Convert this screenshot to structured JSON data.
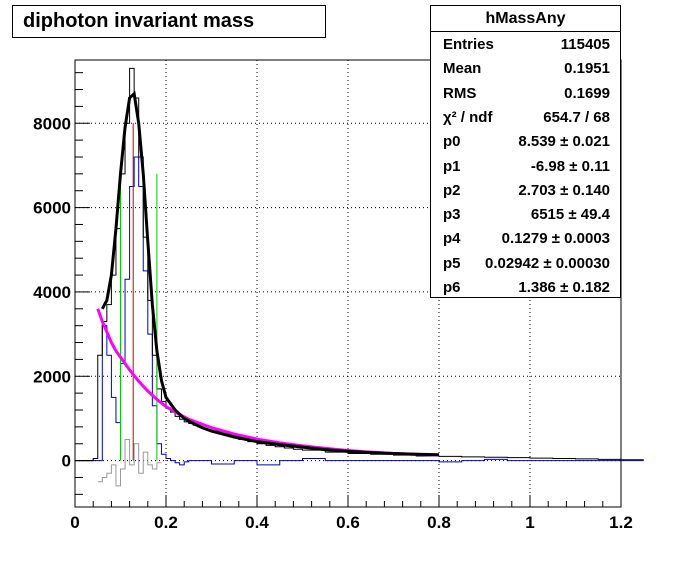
{
  "title": "diphoton invariant mass",
  "stats": {
    "name": "hMassAny",
    "rows": [
      {
        "label": "Entries",
        "value": "115405"
      },
      {
        "label": "Mean",
        "value": "0.1951"
      },
      {
        "label": "RMS",
        "value": "0.1699"
      },
      {
        "label": "χ² / ndf",
        "value": "654.7 / 68"
      },
      {
        "label": "p0",
        "value": "8.539 ± 0.021"
      },
      {
        "label": "p1",
        "value": "-6.98 ± 0.11"
      },
      {
        "label": "p2",
        "value": "2.703 ± 0.140"
      },
      {
        "label": "p3",
        "value": "6515 ± 49.4"
      },
      {
        "label": "p4",
        "value": "0.1279 ± 0.0003"
      },
      {
        "label": "p5",
        "value": "0.02942 ± 0.00030"
      },
      {
        "label": "p6",
        "value": "1.386 ± 0.182"
      }
    ]
  },
  "chart_data": {
    "type": "line",
    "title": "diphoton invariant mass",
    "xlim": [
      0,
      1.2
    ],
    "ylim": [
      -1100,
      9500
    ],
    "x_ticks": [
      0,
      0.2,
      0.4,
      0.6,
      0.8,
      1,
      1.2
    ],
    "x_tick_labels": [
      "0",
      "0.2",
      "0.4",
      "0.6",
      "0.8",
      "1",
      "1.2"
    ],
    "y_ticks": [
      0,
      2000,
      4000,
      6000,
      8000
    ],
    "y_tick_labels": [
      "0",
      "2000",
      "4000",
      "6000",
      "8000"
    ],
    "grid": true,
    "colors": {
      "histogram": "#000000",
      "signal": "#0000cc",
      "residual": "#999999",
      "peak_line": "#cc0000",
      "window_lines": "#00cc00",
      "total_fit": "#000000",
      "background_fit": "#ff00ff"
    },
    "series": [
      {
        "id": "data",
        "x": [
          0.0,
          0.01,
          0.02,
          0.03,
          0.04,
          0.05,
          0.06,
          0.07,
          0.08,
          0.09,
          0.1,
          0.11,
          0.12,
          0.13,
          0.14,
          0.15,
          0.16,
          0.17,
          0.18,
          0.19,
          0.2,
          0.21,
          0.22,
          0.23,
          0.24,
          0.25,
          0.26,
          0.27,
          0.28,
          0.29,
          0.3,
          0.32,
          0.34,
          0.36,
          0.38,
          0.4,
          0.42,
          0.44,
          0.46,
          0.48,
          0.5,
          0.55,
          0.6,
          0.65,
          0.7,
          0.75,
          0.8,
          0.85,
          0.9,
          0.95,
          1.0,
          1.05,
          1.1,
          1.15,
          1.2
        ],
        "y": [
          0,
          0,
          0,
          0,
          50,
          2500,
          3300,
          3700,
          4400,
          5500,
          6800,
          8000,
          9300,
          8600,
          7200,
          5300,
          3800,
          2500,
          1700,
          1400,
          1250,
          1150,
          1050,
          980,
          920,
          880,
          840,
          800,
          760,
          730,
          700,
          630,
          560,
          500,
          450,
          400,
          360,
          330,
          300,
          270,
          250,
          200,
          170,
          150,
          130,
          110,
          100,
          90,
          80,
          70,
          60,
          50,
          40,
          30,
          20
        ]
      },
      {
        "id": "signal",
        "x": [
          0.0,
          0.02,
          0.04,
          0.05,
          0.06,
          0.07,
          0.08,
          0.09,
          0.1,
          0.11,
          0.12,
          0.13,
          0.14,
          0.15,
          0.16,
          0.17,
          0.18,
          0.19,
          0.2,
          0.21,
          0.22,
          0.23,
          0.24,
          0.25,
          0.26,
          0.27,
          0.28,
          0.3,
          0.35,
          0.4,
          0.45,
          0.5,
          0.55,
          0.6,
          0.65,
          0.7,
          0.75,
          0.8,
          0.85,
          0.9,
          0.95,
          1.0,
          1.05,
          1.1,
          1.15,
          1.2
        ],
        "y": [
          0,
          0,
          0,
          0,
          3200,
          2500,
          1500,
          900,
          2300,
          4300,
          6500,
          7200,
          6500,
          4500,
          3000,
          1300,
          400,
          150,
          50,
          0,
          -50,
          -100,
          -30,
          0,
          0,
          0,
          0,
          -80,
          0,
          -100,
          0,
          50,
          0,
          0,
          0,
          0,
          0,
          -30,
          0,
          30,
          0,
          0,
          0,
          0,
          0,
          0
        ]
      },
      {
        "id": "residual",
        "x": [
          0.05,
          0.06,
          0.07,
          0.08,
          0.09,
          0.1,
          0.11,
          0.12,
          0.13,
          0.14,
          0.15,
          0.16,
          0.17,
          0.18
        ],
        "y": [
          -500,
          -400,
          -300,
          -100,
          -600,
          -200,
          500,
          -100,
          400,
          -300,
          200,
          -100,
          -200,
          -50
        ]
      },
      {
        "id": "total_fit",
        "x": [
          0.06,
          0.07,
          0.08,
          0.09,
          0.1,
          0.11,
          0.12,
          0.13,
          0.14,
          0.15,
          0.16,
          0.17,
          0.18,
          0.19,
          0.2,
          0.22,
          0.24,
          0.26,
          0.28,
          0.3,
          0.35,
          0.4,
          0.45,
          0.5,
          0.55,
          0.6,
          0.65,
          0.7,
          0.75,
          0.8
        ],
        "y": [
          3600,
          3800,
          4400,
          5500,
          6800,
          7900,
          8600,
          8700,
          8000,
          6800,
          5200,
          3700,
          2600,
          1900,
          1500,
          1200,
          1000,
          880,
          780,
          700,
          560,
          450,
          380,
          320,
          260,
          220,
          190,
          170,
          150,
          140
        ]
      },
      {
        "id": "background_fit",
        "x": [
          0.05,
          0.06,
          0.07,
          0.08,
          0.09,
          0.1,
          0.12,
          0.14,
          0.16,
          0.18,
          0.2,
          0.22,
          0.25,
          0.3,
          0.35,
          0.4,
          0.45,
          0.5,
          0.55,
          0.6,
          0.65,
          0.7,
          0.75,
          0.8
        ],
        "y": [
          3600,
          3300,
          3050,
          2800,
          2600,
          2450,
          2150,
          1880,
          1650,
          1450,
          1280,
          1150,
          980,
          780,
          630,
          510,
          420,
          350,
          290,
          240,
          200,
          170,
          150,
          130
        ]
      }
    ],
    "vlines": [
      {
        "x": 0.1,
        "y0": 0,
        "y1": 6800,
        "color": "window_lines"
      },
      {
        "x": 0.18,
        "y0": 0,
        "y1": 6800,
        "color": "window_lines"
      },
      {
        "x": 0.1279,
        "y0": 0,
        "y1": 8000,
        "color": "peak_line"
      }
    ]
  }
}
